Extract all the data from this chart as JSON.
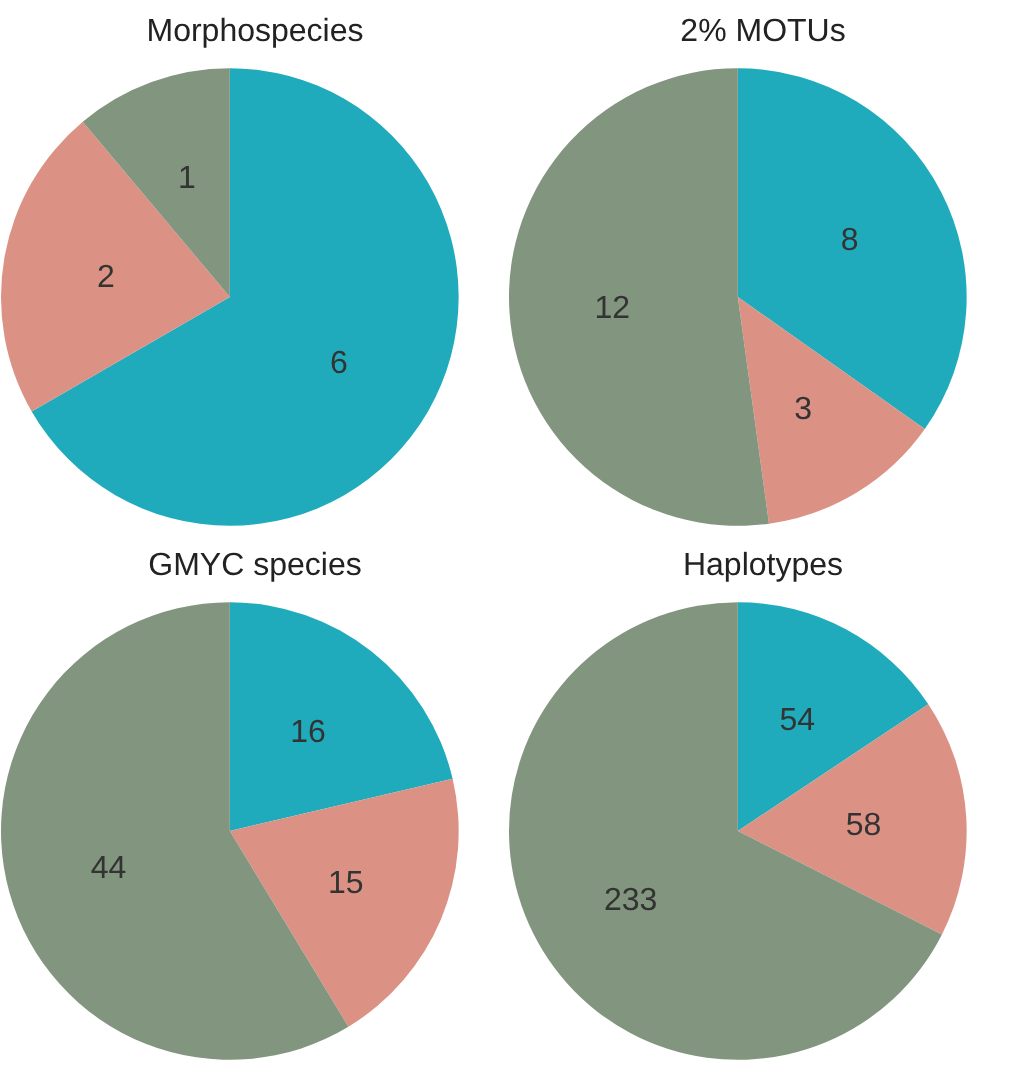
{
  "chart_data": [
    {
      "type": "pie",
      "title": "Morphospecies",
      "categories": [
        null,
        null,
        null
      ],
      "values": [
        6,
        2,
        1
      ],
      "colors": [
        "#20abbd",
        "#db9184",
        "#82957e"
      ],
      "data_labels": true
    },
    {
      "type": "pie",
      "title": "2% MOTUs",
      "categories": [
        null,
        null,
        null
      ],
      "values": [
        8,
        3,
        12
      ],
      "colors": [
        "#20abbd",
        "#db9184",
        "#82957e"
      ],
      "data_labels": true
    },
    {
      "type": "pie",
      "title": "GMYC species",
      "categories": [
        null,
        null,
        null
      ],
      "values": [
        16,
        15,
        44
      ],
      "colors": [
        "#20abbd",
        "#db9184",
        "#82957e"
      ],
      "data_labels": true
    },
    {
      "type": "pie",
      "title": "Haplotypes",
      "categories": [
        null,
        null,
        null
      ],
      "values": [
        54,
        58,
        233
      ],
      "colors": [
        "#20abbd",
        "#db9184",
        "#82957e"
      ],
      "data_labels": true
    }
  ]
}
